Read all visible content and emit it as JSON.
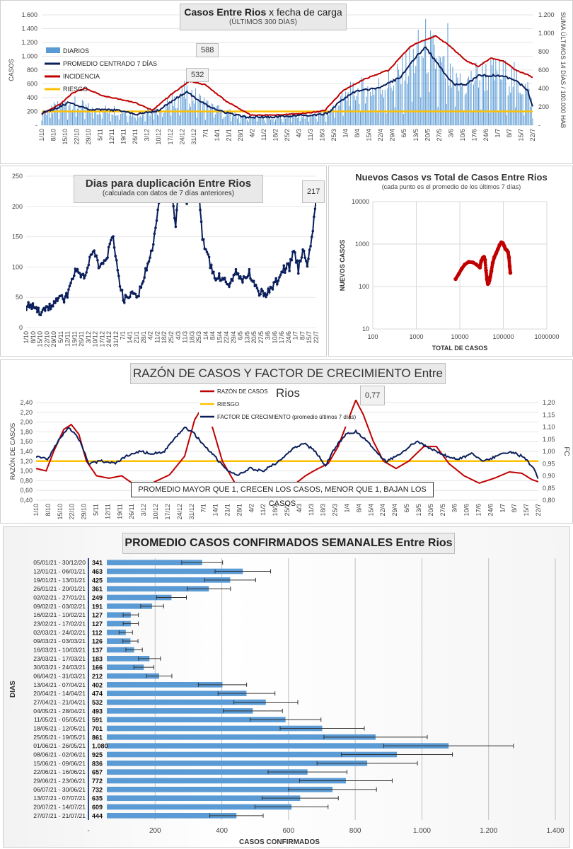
{
  "chart_data": [
    {
      "type": "bar+line",
      "title": "Casos Entre Rios x fecha de carga",
      "title_bold_part": "Casos Entre Rios",
      "title_rest": "x fecha de carga",
      "subtitle": "(ÚLTIMOS 300 DÍAS)",
      "ylabel": "CASOS",
      "y2label": "SUMA ÚLTIMOS 14 DÍAS / 100.000 HAB",
      "ylim": [
        0,
        1600
      ],
      "y2lim": [
        0,
        1200
      ],
      "yticks": [
        "-",
        "200",
        "400",
        "600",
        "800",
        "1.000",
        "1.200",
        "1.400",
        "1.600"
      ],
      "y2ticks": [
        "-",
        "200",
        "400",
        "600",
        "800",
        "1.000",
        "1.200"
      ],
      "x_ticks": [
        "1/10",
        "8/10",
        "15/10",
        "22/10",
        "29/10",
        "5/11",
        "12/11",
        "19/11",
        "26/11",
        "3/12",
        "10/12",
        "17/12",
        "24/12",
        "31/12",
        "7/1",
        "14/1",
        "21/1",
        "28/1",
        "4/2",
        "11/2",
        "18/2",
        "25/2",
        "4/3",
        "11/3",
        "18/3",
        "25/3",
        "1/4",
        "8/4",
        "15/4",
        "22/4",
        "29/4",
        "6/5",
        "13/5",
        "20/5",
        "27/5",
        "3/6",
        "10/6",
        "17/6",
        "24/6",
        "1/7",
        "8/7",
        "15/7",
        "22/7"
      ],
      "annotations": [
        "588",
        "532"
      ],
      "legend": [
        "DIARIOS",
        "PROMEDIO CENTRADO 7 DÍAS",
        "INCIDENCIA",
        "RIESGO"
      ],
      "colors": {
        "diarios": "#5b9bd5",
        "promedio": "#0b1f5c",
        "incidencia": "#c00000",
        "riesgo": "#ffc000"
      },
      "riesgo": 200,
      "promedio_keys": [
        [
          0,
          180
        ],
        [
          12,
          250
        ],
        [
          22,
          330
        ],
        [
          40,
          225
        ],
        [
          60,
          220
        ],
        [
          78,
          160
        ],
        [
          95,
          215
        ],
        [
          110,
          400
        ],
        [
          118,
          480
        ],
        [
          135,
          280
        ],
        [
          150,
          180
        ],
        [
          165,
          120
        ],
        [
          185,
          115
        ],
        [
          205,
          140
        ],
        [
          220,
          140
        ],
        [
          232,
          170
        ],
        [
          243,
          350
        ],
        [
          253,
          480
        ],
        [
          275,
          550
        ],
        [
          292,
          700
        ],
        [
          302,
          950
        ],
        [
          312,
          1130
        ],
        [
          322,
          880
        ],
        [
          335,
          590
        ],
        [
          345,
          590
        ],
        [
          355,
          720
        ],
        [
          372,
          720
        ],
        [
          385,
          660
        ],
        [
          395,
          500
        ],
        [
          400,
          210
        ]
      ],
      "incidencia_keys": [
        [
          0,
          120
        ],
        [
          15,
          230
        ],
        [
          25,
          350
        ],
        [
          35,
          400
        ],
        [
          50,
          320
        ],
        [
          75,
          250
        ],
        [
          90,
          165
        ],
        [
          105,
          330
        ],
        [
          120,
          480
        ],
        [
          133,
          440
        ],
        [
          150,
          260
        ],
        [
          170,
          110
        ],
        [
          190,
          110
        ],
        [
          215,
          130
        ],
        [
          230,
          160
        ],
        [
          245,
          380
        ],
        [
          262,
          500
        ],
        [
          282,
          600
        ],
        [
          300,
          860
        ],
        [
          310,
          920
        ],
        [
          320,
          970
        ],
        [
          330,
          880
        ],
        [
          345,
          700
        ],
        [
          355,
          640
        ],
        [
          365,
          730
        ],
        [
          375,
          700
        ],
        [
          385,
          600
        ],
        [
          395,
          550
        ],
        [
          400,
          510
        ]
      ]
    },
    {
      "type": "line",
      "title": "Dias para duplicación Entre Rios",
      "subtitle": "(calculada con datos de 7 días anteriores)",
      "ylim": [
        0,
        250
      ],
      "yticks": [
        "0",
        "50",
        "100",
        "150",
        "200",
        "250"
      ],
      "annotation": "217",
      "x_ticks": [
        "1/10",
        "8/10",
        "15/10",
        "22/10",
        "29/10",
        "5/11",
        "12/11",
        "19/11",
        "26/11",
        "3/12",
        "10/12",
        "17/12",
        "24/12",
        "31/12",
        "7/1",
        "14/1",
        "21/1",
        "28/1",
        "4/2",
        "11/2",
        "18/2",
        "25/2",
        "4/3",
        "11/3",
        "18/3",
        "25/3",
        "1/4",
        "8/4",
        "15/4",
        "22/4",
        "29/4",
        "6/5",
        "13/5",
        "20/5",
        "27/5",
        "3/6",
        "10/6",
        "17/6",
        "24/6",
        "1/7",
        "8/7",
        "15/7",
        "22/7"
      ],
      "color": "#0b1f5c",
      "keys": [
        [
          0,
          36
        ],
        [
          6,
          33
        ],
        [
          12,
          26
        ],
        [
          20,
          32
        ],
        [
          28,
          45
        ],
        [
          36,
          50
        ],
        [
          44,
          95
        ],
        [
          52,
          80
        ],
        [
          60,
          130
        ],
        [
          66,
          95
        ],
        [
          72,
          115
        ],
        [
          78,
          150
        ],
        [
          84,
          70
        ],
        [
          88,
          45
        ],
        [
          94,
          55
        ],
        [
          100,
          50
        ],
        [
          106,
          85
        ],
        [
          112,
          120
        ],
        [
          118,
          190
        ],
        [
          124,
          250
        ],
        [
          128,
          250
        ],
        [
          134,
          170
        ],
        [
          138,
          250
        ],
        [
          144,
          200
        ],
        [
          150,
          250
        ],
        [
          154,
          250
        ],
        [
          158,
          150
        ],
        [
          164,
          110
        ],
        [
          170,
          80
        ],
        [
          176,
          85
        ],
        [
          182,
          70
        ],
        [
          188,
          95
        ],
        [
          194,
          75
        ],
        [
          200,
          90
        ],
        [
          206,
          65
        ],
        [
          212,
          55
        ],
        [
          218,
          60
        ],
        [
          224,
          75
        ],
        [
          230,
          95
        ],
        [
          236,
          100
        ],
        [
          240,
          130
        ],
        [
          244,
          95
        ],
        [
          248,
          130
        ],
        [
          252,
          105
        ],
        [
          256,
          150
        ],
        [
          260,
          215
        ]
      ]
    },
    {
      "type": "scatter",
      "title": "Nuevos Casos vs Total de Casos Entre Rios",
      "subtitle": "(cada punto es el promedio de los últimos 7 días)",
      "xlabel": "TOTAL DE CASOS",
      "ylabel": "NUEVOS CASOS",
      "scale": "log",
      "xlim": [
        100,
        1000000
      ],
      "ylim": [
        10,
        10000
      ],
      "xticks": [
        "100",
        "1000",
        "10000",
        "100000",
        "1000000"
      ],
      "yticks": [
        "10",
        "100",
        "1000",
        "10000"
      ],
      "color": "#c00000",
      "points": [
        [
          8000,
          150
        ],
        [
          9500,
          200
        ],
        [
          11000,
          260
        ],
        [
          13000,
          330
        ],
        [
          16000,
          380
        ],
        [
          20000,
          370
        ],
        [
          24000,
          330
        ],
        [
          27000,
          300
        ],
        [
          29000,
          280
        ],
        [
          31000,
          400
        ],
        [
          34000,
          480
        ],
        [
          36000,
          500
        ],
        [
          38000,
          420
        ],
        [
          40000,
          240
        ],
        [
          42000,
          150
        ],
        [
          44000,
          115
        ],
        [
          46000,
          120
        ],
        [
          48000,
          140
        ],
        [
          50000,
          170
        ],
        [
          53000,
          230
        ],
        [
          57000,
          360
        ],
        [
          62000,
          490
        ],
        [
          68000,
          600
        ],
        [
          75000,
          760
        ],
        [
          82000,
          950
        ],
        [
          90000,
          1100
        ],
        [
          98000,
          1050
        ],
        [
          105000,
          900
        ],
        [
          112000,
          760
        ],
        [
          120000,
          720
        ],
        [
          128000,
          650
        ],
        [
          135000,
          480
        ],
        [
          140000,
          300
        ],
        [
          145000,
          210
        ]
      ]
    },
    {
      "type": "line",
      "title": "RAZÓN DE CASOS Y FACTOR DE CRECIMIENTO Entre Rios",
      "title_main": "RAZÓN DE CASOS Y FACTOR DE CRECIMIENTO",
      "title_suffix": "Entre Rios",
      "ylabel": "RAZÓN DE CASOS",
      "y2label": "FC",
      "ylim": [
        0.4,
        2.4
      ],
      "y2lim": [
        0.8,
        1.2
      ],
      "yticks": [
        "0,40",
        "0,60",
        "0,80",
        "1,00",
        "1,20",
        "1,40",
        "1,60",
        "1,80",
        "2,00",
        "2,20",
        "2,40"
      ],
      "y2ticks": [
        "0,80",
        "0,85",
        "0,90",
        "0,95",
        "1,00",
        "1,05",
        "1,10",
        "1,15",
        "1,20"
      ],
      "legend": [
        "RAZÓN DE CASOS",
        "RIESGO",
        "FACTOR DE CRECIMIENTO (promedio últimos 7 días)"
      ],
      "annotation": "0,77",
      "note": "PROMEDIO MAYOR QUE 1, CRECEN LOS CASOS, MENOR QUE 1, BAJAN LOS CASOS",
      "x_ticks": [
        "1/10",
        "8/10",
        "15/10",
        "22/10",
        "29/10",
        "5/11",
        "12/11",
        "19/11",
        "26/11",
        "3/12",
        "10/12",
        "17/12",
        "24/12",
        "31/12",
        "7/1",
        "14/1",
        "21/1",
        "28/1",
        "4/2",
        "11/2",
        "18/2",
        "25/2",
        "4/3",
        "11/3",
        "18/3",
        "25/3",
        "1/4",
        "8/4",
        "15/4",
        "22/4",
        "29/4",
        "6/5",
        "13/5",
        "20/5",
        "27/5",
        "3/6",
        "10/6",
        "17/6",
        "24/6",
        "1/7",
        "8/7",
        "15/7",
        "22/7"
      ],
      "riesgo": 1.2,
      "colors": {
        "razon": "#c00000",
        "riesgo": "#ffc000",
        "fc": "#0b1f5c"
      },
      "razon_keys": [
        [
          0,
          1.05
        ],
        [
          8,
          1.0
        ],
        [
          14,
          1.4
        ],
        [
          22,
          1.85
        ],
        [
          28,
          1.95
        ],
        [
          34,
          1.75
        ],
        [
          40,
          1.2
        ],
        [
          48,
          0.9
        ],
        [
          58,
          0.85
        ],
        [
          68,
          0.9
        ],
        [
          78,
          0.72
        ],
        [
          92,
          0.75
        ],
        [
          106,
          0.92
        ],
        [
          118,
          1.3
        ],
        [
          126,
          2.05
        ],
        [
          132,
          2.3
        ],
        [
          140,
          1.9
        ],
        [
          148,
          1.2
        ],
        [
          158,
          0.75
        ],
        [
          170,
          0.6
        ],
        [
          182,
          0.52
        ],
        [
          194,
          0.56
        ],
        [
          204,
          0.7
        ],
        [
          214,
          0.9
        ],
        [
          222,
          1.02
        ],
        [
          232,
          1.15
        ],
        [
          240,
          1.5
        ],
        [
          248,
          2.05
        ],
        [
          254,
          2.45
        ],
        [
          260,
          2.15
        ],
        [
          268,
          1.6
        ],
        [
          276,
          1.2
        ],
        [
          286,
          1.05
        ],
        [
          296,
          1.2
        ],
        [
          308,
          1.5
        ],
        [
          318,
          1.5
        ],
        [
          328,
          1.15
        ],
        [
          340,
          0.9
        ],
        [
          352,
          0.75
        ],
        [
          364,
          0.85
        ],
        [
          376,
          0.98
        ],
        [
          386,
          0.95
        ],
        [
          394,
          0.82
        ],
        [
          400,
          0.77
        ]
      ],
      "fc_keys": [
        [
          0,
          0.98
        ],
        [
          10,
          0.97
        ],
        [
          18,
          1.05
        ],
        [
          26,
          1.1
        ],
        [
          34,
          1.05
        ],
        [
          42,
          0.95
        ],
        [
          52,
          0.96
        ],
        [
          62,
          0.95
        ],
        [
          72,
          0.98
        ],
        [
          82,
          1.0
        ],
        [
          92,
          0.99
        ],
        [
          102,
          1.0
        ],
        [
          110,
          1.05
        ],
        [
          118,
          1.1
        ],
        [
          126,
          1.07
        ],
        [
          134,
          1.02
        ],
        [
          142,
          0.98
        ],
        [
          150,
          0.93
        ],
        [
          160,
          0.9
        ],
        [
          170,
          0.93
        ],
        [
          180,
          0.92
        ],
        [
          190,
          0.95
        ],
        [
          198,
          0.98
        ],
        [
          206,
          1.02
        ],
        [
          214,
          1.03
        ],
        [
          222,
          1.0
        ],
        [
          230,
          0.94
        ],
        [
          238,
          1.02
        ],
        [
          246,
          1.07
        ],
        [
          254,
          1.08
        ],
        [
          262,
          1.05
        ],
        [
          270,
          1.0
        ],
        [
          278,
          0.96
        ],
        [
          286,
          0.98
        ],
        [
          294,
          1.01
        ],
        [
          302,
          1.04
        ],
        [
          310,
          1.02
        ],
        [
          318,
          1.0
        ],
        [
          326,
          0.98
        ],
        [
          336,
          0.97
        ],
        [
          346,
          0.99
        ],
        [
          356,
          0.96
        ],
        [
          366,
          0.98
        ],
        [
          376,
          1.0
        ],
        [
          386,
          0.98
        ],
        [
          394,
          0.94
        ],
        [
          400,
          0.88
        ]
      ]
    },
    {
      "type": "bar",
      "orientation": "horizontal",
      "title": "PROMEDIO CASOS CONFIRMADOS SEMANALES Entre Rios",
      "xlabel": "CASOS CONFIRMADOS",
      "ylabel": "DIAS",
      "xlim": [
        0,
        1400
      ],
      "xticks": [
        "-",
        "200",
        "400",
        "600",
        "800",
        "1.000",
        "1.200",
        "1.400"
      ],
      "color": "#5b9bd5",
      "categories": [
        "05/01/21 - 30/12/20",
        "12/01/21 - 06/01/21",
        "19/01/21 - 13/01/21",
        "26/01/21 - 20/01/21",
        "02/02/21 - 27/01/21",
        "09/02/21 - 03/02/21",
        "16/02/21 - 10/02/21",
        "23/02/21 - 17/02/21",
        "02/03/21 - 24/02/21",
        "09/03/21 - 03/03/21",
        "16/03/21 - 10/03/21",
        "23/03/21 - 17/03/21",
        "30/03/21 - 24/03/21",
        "06/04/21 - 31/03/21",
        "13/04/21 - 07/04/21",
        "20/04/21 - 14/04/21",
        "27/04/21 - 21/04/21",
        "04/05/21 - 28/04/21",
        "11/05/21 - 05/05/21",
        "18/05/21 - 12/05/21",
        "25/05/21 - 19/05/21",
        "01/06/21 - 26/05/21",
        "08/06/21 - 02/06/21",
        "15/06/21 - 09/06/21",
        "22/06/21 - 16/06/21",
        "29/06/21 - 23/06/21",
        "06/07/21 - 30/06/21",
        "13/07/21 - 07/07/21",
        "20/07/21 - 14/07/21",
        "27/07/21 - 21/07/21"
      ],
      "values": [
        341,
        463,
        425,
        361,
        249,
        191,
        127,
        127,
        112,
        126,
        137,
        183,
        166,
        212,
        402,
        474,
        532,
        493,
        591,
        701,
        861,
        1080,
        925,
        836,
        657,
        772,
        732,
        635,
        609,
        444
      ],
      "labels": [
        "341",
        "463",
        "425",
        "361",
        "249",
        "191",
        "127",
        "127",
        "112",
        "126",
        "137",
        "183",
        "166",
        "212",
        "402",
        "474",
        "532",
        "493",
        "591",
        "701",
        "861",
        "1.080",
        "925",
        "836",
        "657",
        "772",
        "732",
        "635",
        "609",
        "444"
      ]
    }
  ]
}
